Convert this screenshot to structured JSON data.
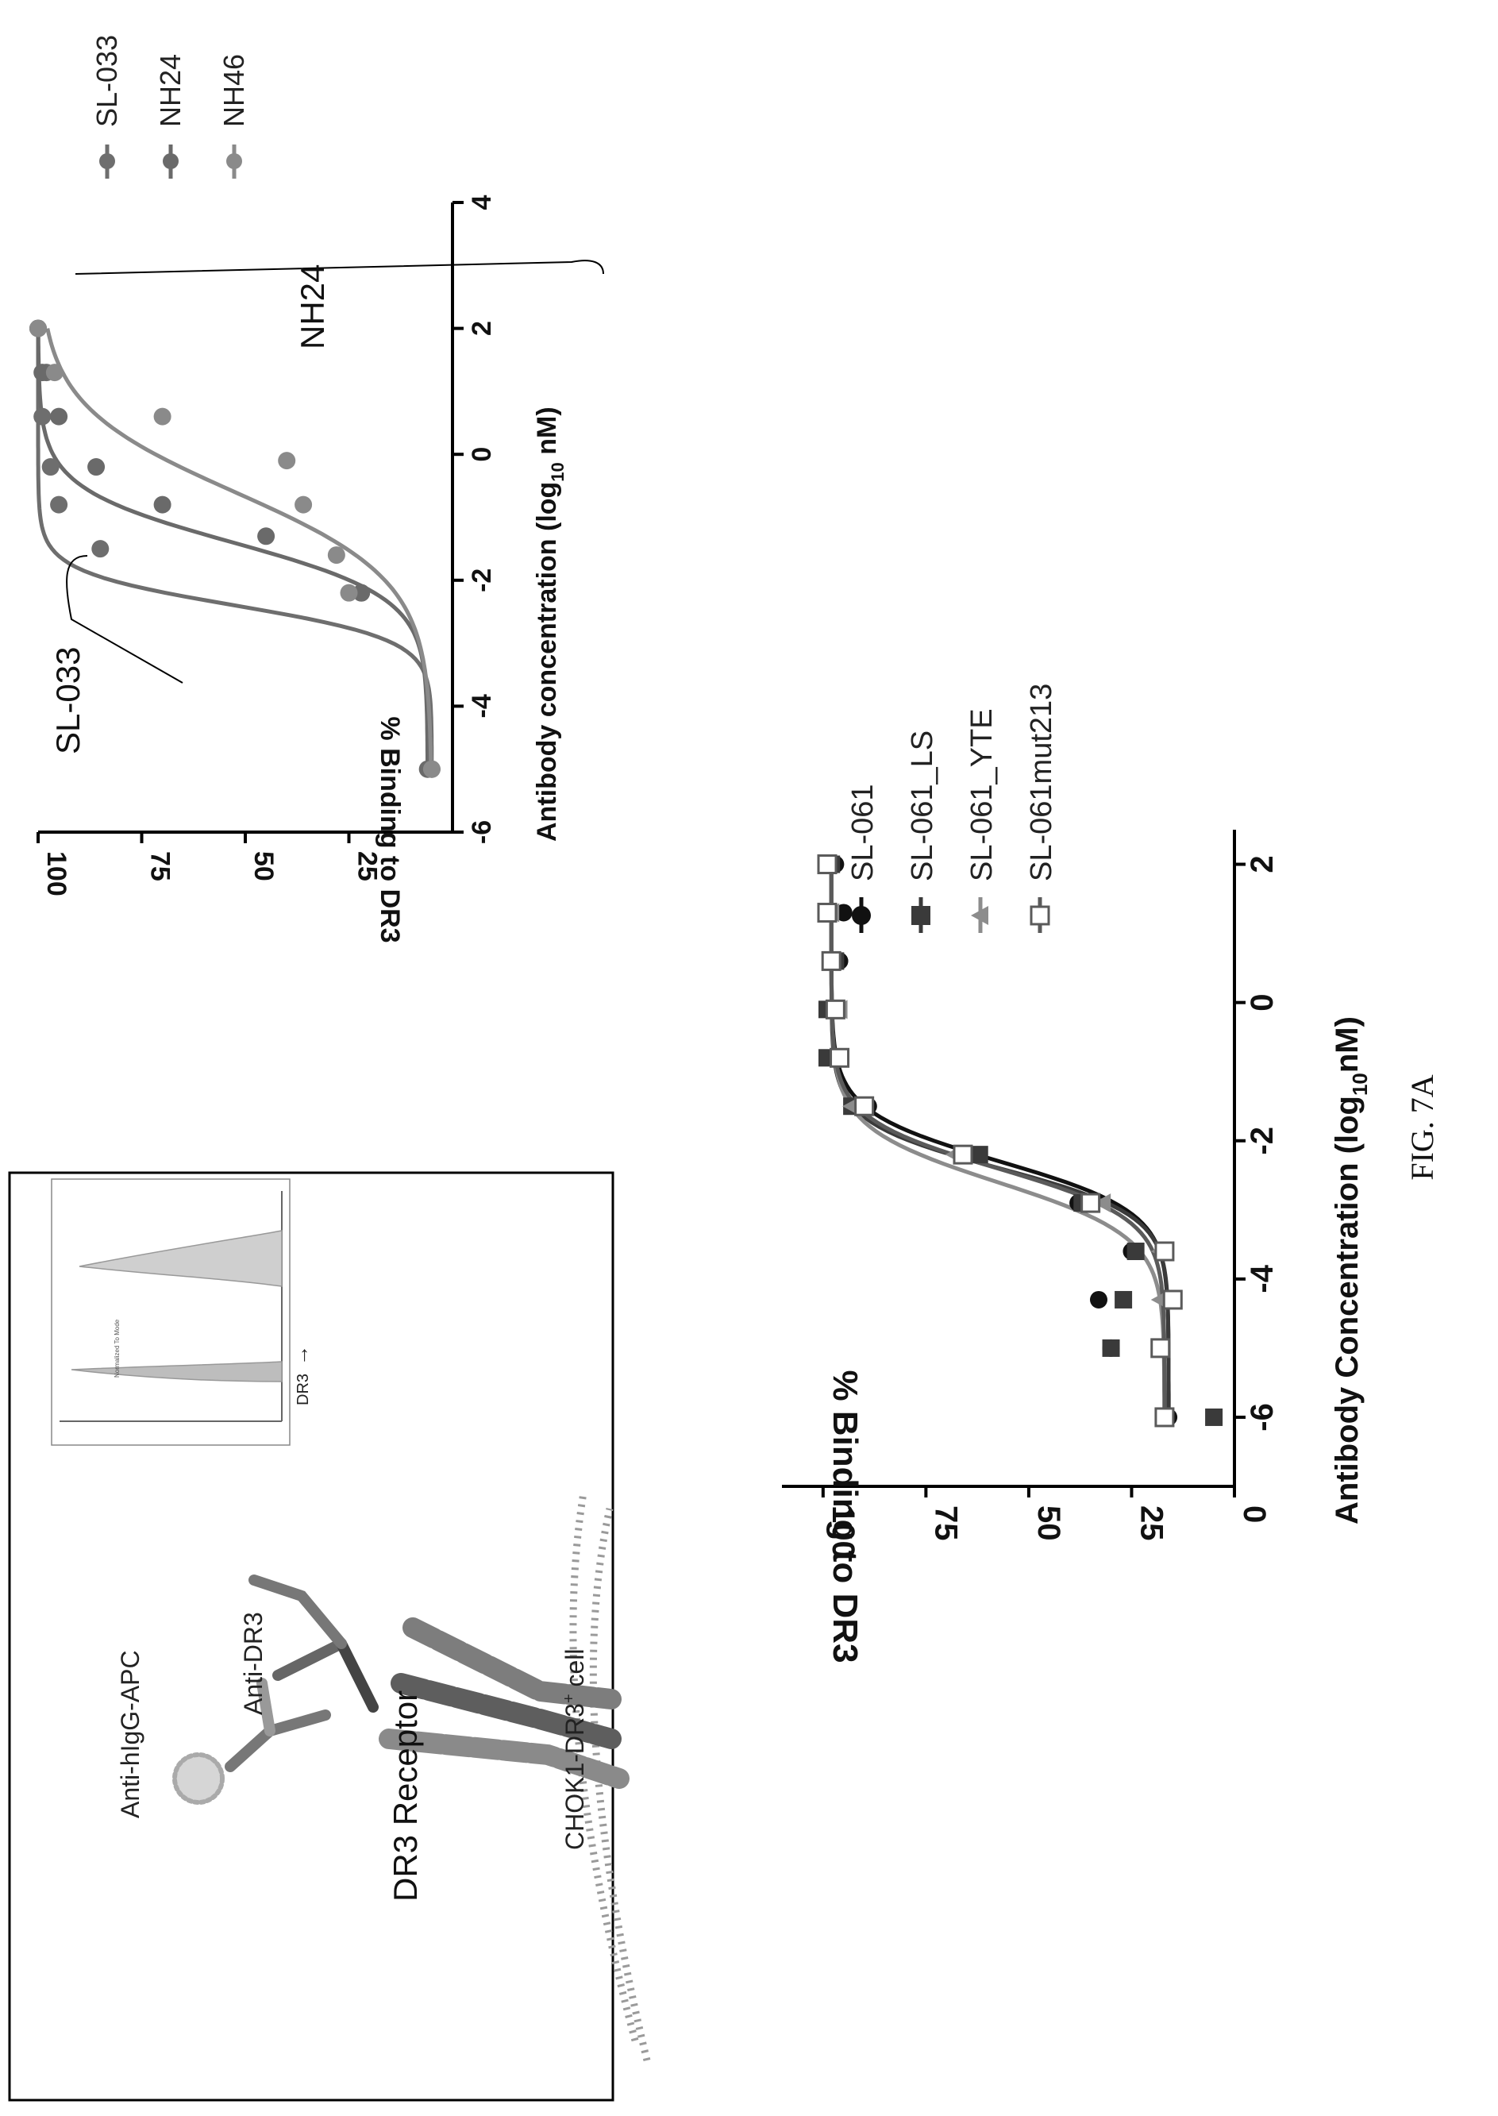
{
  "figure_label": "FIG. 7A",
  "schematic": {
    "labels": {
      "secondary": "Anti-hIgG-APC",
      "primary": "Anti-DR3",
      "receptor": "DR3 Receptor",
      "cell": "CHOK1-DR3",
      "cell_sup": "+",
      "cell_suffix": " cell"
    },
    "inset": {
      "xlabel": "DR3",
      "arrow": "→",
      "ylabel": "Normalized To Mode"
    }
  },
  "chart_data": [
    {
      "type": "line",
      "id": "top-right",
      "xlabel": "Antibody concentration (log",
      "xlabel_sub": "10",
      "xlabel_end": " nM)",
      "ylabel": "% Binding to DR3",
      "xlim": [
        -6,
        4
      ],
      "ylim": [
        0,
        100
      ],
      "xticks": [
        -6,
        -4,
        -2,
        0,
        2,
        4
      ],
      "yticks": [
        25,
        50,
        75,
        100
      ],
      "annotations": [
        "SL-033",
        "NH24"
      ],
      "series": [
        {
          "name": "SL-033",
          "color": "#6e6e6e",
          "x": [
            -5,
            -2.2,
            -1.5,
            -0.8,
            -0.2,
            0.6,
            1.3,
            2
          ],
          "y": [
            5,
            22,
            85,
            95,
            97,
            99,
            98,
            100
          ],
          "fit": {
            "top": 100,
            "bottom": 5,
            "ec50": -2.4,
            "hill": 1.6
          }
        },
        {
          "name": "NH24",
          "color": "#6a6a6a",
          "x": [
            -5,
            -2.2,
            -1.3,
            -0.8,
            -0.2,
            0.6,
            1.3,
            2
          ],
          "y": [
            6,
            22,
            45,
            70,
            86,
            95,
            99,
            100
          ],
          "fit": {
            "top": 100,
            "bottom": 6,
            "ec50": -1.4,
            "hill": 1.0
          }
        },
        {
          "name": "NH46",
          "color": "#8a8a8a",
          "x": [
            -5,
            -2.2,
            -1.6,
            -0.8,
            -0.1,
            0.6,
            1.3,
            2
          ],
          "y": [
            5,
            25,
            28,
            36,
            40,
            70,
            96,
            100
          ],
          "fit": {
            "top": 100,
            "bottom": 5,
            "ec50": -0.6,
            "hill": 0.62
          }
        }
      ]
    },
    {
      "type": "line",
      "id": "bottom-right",
      "xlabel": "Antibody Concentration (log",
      "xlabel_sub": "10",
      "xlabel_end": "nM)",
      "ylabel": "% Binding to  DR3",
      "xlim": [
        -7,
        2.5
      ],
      "ylim": [
        0,
        110
      ],
      "xticks": [
        -6,
        -4,
        -2,
        0,
        2
      ],
      "yticks": [
        0,
        25,
        50,
        75,
        100
      ],
      "series": [
        {
          "name": "SL-061",
          "marker": "circle",
          "color": "#111111",
          "x": [
            -6,
            -5,
            -4.3,
            -3.6,
            -2.9,
            -2.2,
            -1.5,
            -0.8,
            -0.1,
            0.6,
            1.3,
            2
          ],
          "y": [
            16,
            30,
            33,
            25,
            38,
            66,
            89,
            97,
            98,
            96,
            95,
            97
          ],
          "fit": {
            "top": 98,
            "bottom": 16,
            "ec50": -2.3,
            "hill": 1.2
          }
        },
        {
          "name": "SL-061_LS",
          "marker": "square",
          "color": "#3a3a3a",
          "x": [
            -6,
            -5,
            -4.3,
            -3.6,
            -2.9,
            -2.2,
            -1.5,
            -0.8,
            -0.1,
            0.6,
            1.3,
            2
          ],
          "y": [
            5,
            30,
            27,
            24,
            37,
            62,
            93,
            99,
            99,
            97,
            99,
            98
          ],
          "fit": {
            "top": 98,
            "bottom": 16,
            "ec50": -2.4,
            "hill": 1.3
          }
        },
        {
          "name": "SL-061_YTE",
          "marker": "triangle",
          "color": "#8c8c8c",
          "x": [
            -6,
            -5,
            -4.3,
            -3.6,
            -2.9,
            -2.2,
            -1.5,
            -0.8,
            -0.1,
            0.6,
            1.3,
            2
          ],
          "y": [
            17,
            18,
            18,
            18,
            32,
            68,
            93,
            96,
            96,
            98,
            98,
            99
          ],
          "fit": {
            "top": 98,
            "bottom": 17,
            "ec50": -2.6,
            "hill": 1.1
          }
        },
        {
          "name": "SL-061mut213",
          "marker": "open-square",
          "color": "#5a5a5a",
          "x": [
            -6,
            -5,
            -4.3,
            -3.6,
            -2.9,
            -2.2,
            -1.5,
            -0.8,
            -0.1,
            0.6,
            1.3,
            2
          ],
          "y": [
            17,
            18,
            15,
            17,
            35,
            66,
            90,
            96,
            97,
            98,
            99,
            99
          ],
          "fit": {
            "top": 98,
            "bottom": 17,
            "ec50": -2.4,
            "hill": 1.2
          }
        }
      ]
    }
  ]
}
